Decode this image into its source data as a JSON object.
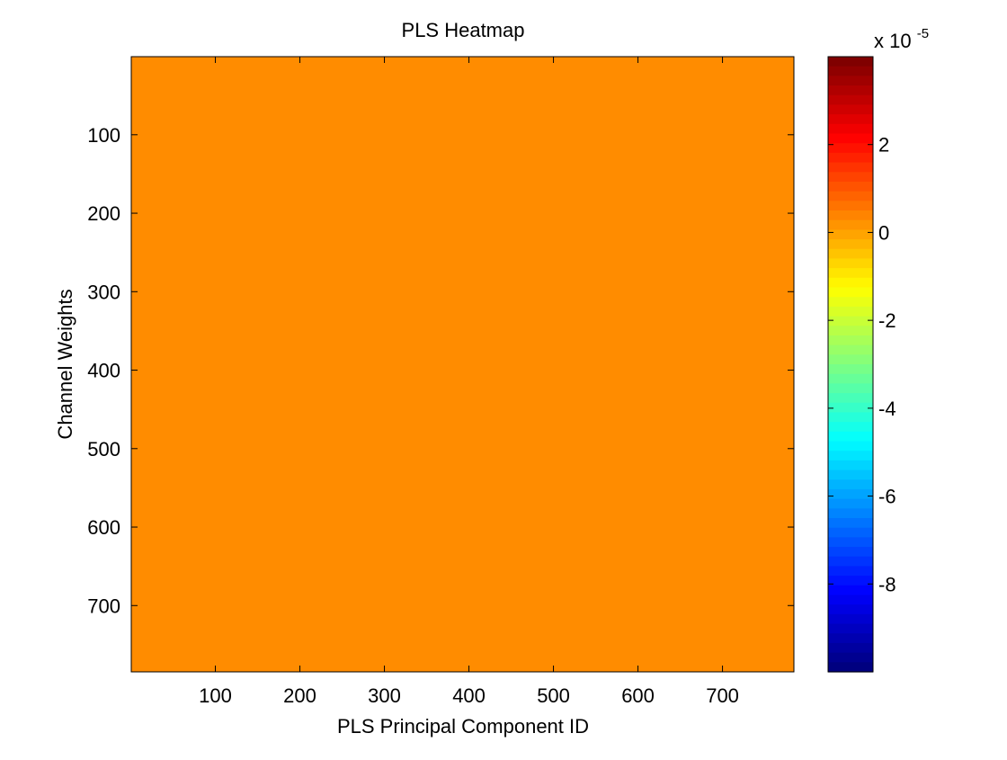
{
  "chart_data": {
    "type": "heatmap",
    "title": "PLS Heatmap",
    "xlabel": "PLS Principal Component ID",
    "ylabel": "Channel Weights",
    "xlim": [
      0.5,
      784.5
    ],
    "ylim": [
      0.5,
      784.5
    ],
    "y_reversed": true,
    "x_ticks": [
      100,
      200,
      300,
      400,
      500,
      600,
      700
    ],
    "y_ticks": [
      100,
      200,
      300,
      400,
      500,
      600,
      700
    ],
    "fill_value": 0,
    "fill_color": "#ff8c00",
    "colorbar": {
      "colormap": "jet",
      "range": [
        -10,
        4
      ],
      "ticks": [
        -8,
        -6,
        -4,
        -2,
        0,
        2
      ],
      "multiplier_base": "x 10",
      "multiplier_exponent": "-5"
    }
  }
}
